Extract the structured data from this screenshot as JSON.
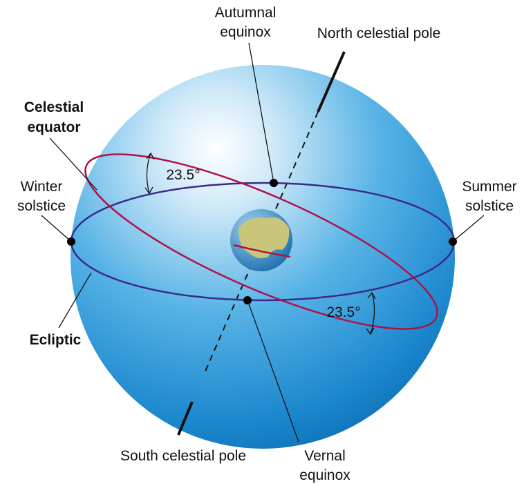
{
  "labels": {
    "autumnal_equinox": [
      "Autumnal",
      "equinox"
    ],
    "north_celestial_pole": "North celestial pole",
    "celestial_equator": [
      "Celestial",
      "equator"
    ],
    "winter_solstice": [
      "Winter",
      "solstice"
    ],
    "summer_solstice": [
      "Summer",
      "solstice"
    ],
    "ecliptic": "Ecliptic",
    "south_celestial_pole": "South celestial pole",
    "vernal_equinox": [
      "Vernal",
      "equinox"
    ],
    "angle_upper": "23.5°",
    "angle_lower": "23.5°"
  }
}
